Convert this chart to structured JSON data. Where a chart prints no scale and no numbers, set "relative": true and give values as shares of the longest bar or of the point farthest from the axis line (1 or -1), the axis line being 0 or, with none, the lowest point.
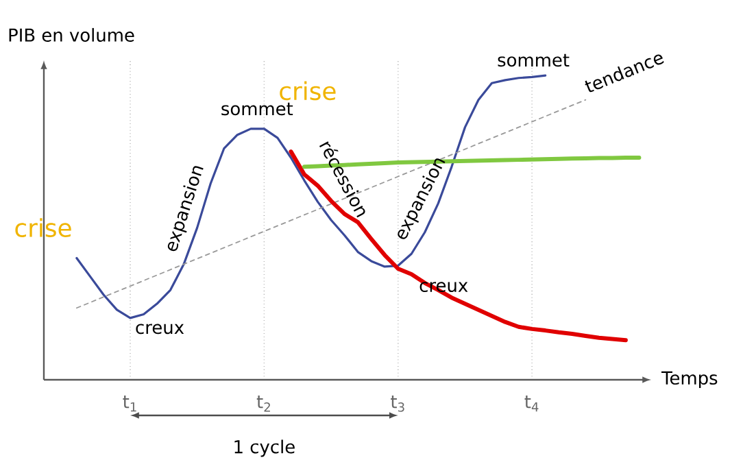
{
  "chart_data": {
    "type": "line",
    "relative": true,
    "xlabel": "Temps",
    "ylabel": "PIB en volume",
    "categories": [
      null,
      null,
      null,
      null,
      null,
      null,
      "t$_{1}$",
      null,
      null,
      null,
      null,
      null,
      null,
      null,
      null,
      null,
      "t$_{2}$",
      null,
      null,
      null,
      null,
      null,
      null,
      null,
      null,
      null,
      "t$_{3}$",
      null,
      null,
      null,
      null,
      null,
      null,
      null,
      null,
      null,
      "t$_{4}$",
      null,
      null,
      null,
      null,
      null,
      null,
      null,
      null
    ],
    "grid": "x",
    "marker": "none",
    "series": [
      {
        "color": "#3a4a9a",
        "line_style": "solid",
        "values": [
          null,
          null,
          0.4,
          0.34,
          0.28,
          0.23,
          0.203,
          0.215,
          0.25,
          0.295,
          0.38,
          0.5,
          0.645,
          0.76,
          0.805,
          0.825,
          0.825,
          0.795,
          0.73,
          0.655,
          0.585,
          0.525,
          0.475,
          0.42,
          0.39,
          0.372,
          0.375,
          0.414,
          0.485,
          0.58,
          0.7,
          0.83,
          0.92,
          0.975,
          0.985,
          0.992,
          0.995,
          1.0,
          null,
          null,
          null,
          null,
          null,
          null,
          null
        ]
      },
      {
        "name": "tendance",
        "color": "#999999",
        "line_style": "dashed",
        "values": [
          null,
          null,
          0.236,
          0.254,
          0.272,
          0.29,
          0.308,
          0.326,
          0.344,
          0.362,
          0.38,
          0.398,
          0.416,
          0.434,
          0.452,
          0.47,
          0.488,
          0.506,
          0.524,
          0.542,
          0.56,
          0.578,
          0.596,
          0.614,
          0.632,
          0.65,
          0.668,
          0.686,
          0.704,
          0.722,
          0.74,
          0.758,
          0.776,
          0.794,
          0.812,
          0.83,
          0.848,
          0.866,
          0.884,
          0.902,
          0.92,
          null,
          null,
          null,
          null
        ]
      },
      {
        "color": "#e00000",
        "line_style": "solid",
        "values": [
          null,
          null,
          null,
          null,
          null,
          null,
          null,
          null,
          null,
          null,
          null,
          null,
          null,
          null,
          null,
          null,
          null,
          null,
          0.75,
          0.675,
          0.638,
          0.588,
          0.545,
          0.518,
          0.463,
          0.41,
          0.365,
          0.347,
          0.318,
          0.295,
          0.27,
          0.25,
          0.23,
          0.21,
          0.19,
          0.174,
          0.167,
          0.162,
          0.156,
          0.151,
          0.144,
          0.138,
          0.134,
          0.13,
          null
        ]
      },
      {
        "color": "#80c840",
        "line_style": "solid",
        "values": [
          null,
          null,
          null,
          null,
          null,
          null,
          null,
          null,
          null,
          null,
          null,
          null,
          null,
          null,
          null,
          null,
          null,
          null,
          null,
          0.7,
          0.702,
          0.704,
          0.706,
          0.708,
          0.71,
          0.712,
          0.714,
          0.715,
          0.716,
          0.717,
          0.718,
          0.719,
          0.72,
          0.721,
          0.722,
          0.723,
          0.724,
          0.725,
          0.726,
          0.727,
          0.728,
          0.729,
          0.729,
          0.73,
          0.73
        ]
      }
    ],
    "annotations": [
      "crise",
      "crise",
      "sommet",
      "sommet",
      "creux",
      "creux",
      "expansion",
      "récession",
      "expansion",
      "1 cycle"
    ]
  }
}
